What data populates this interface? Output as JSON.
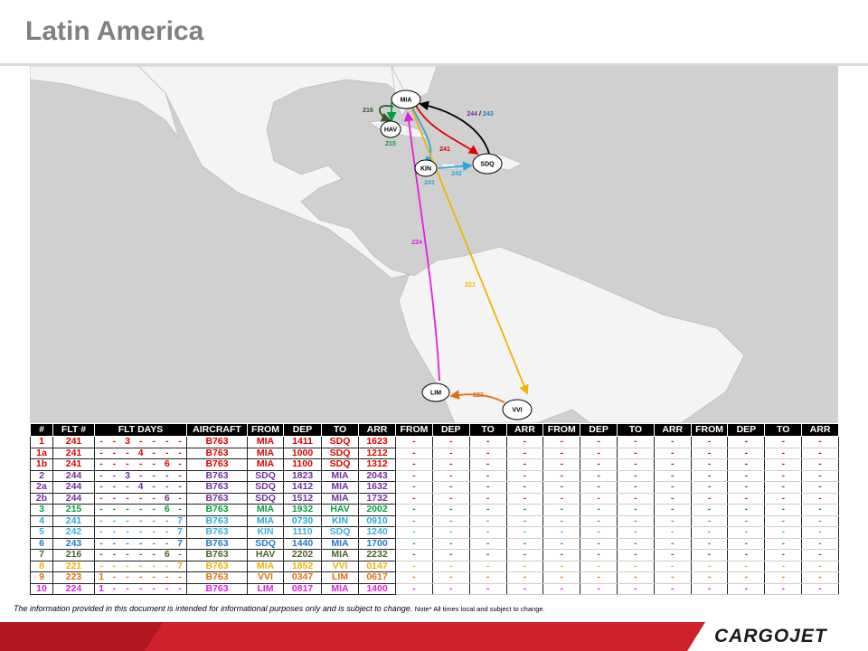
{
  "header": {
    "title": "Latin America"
  },
  "map": {
    "nodes": [
      {
        "label": "MIA"
      },
      {
        "label": "HAV"
      },
      {
        "label": "KIN"
      },
      {
        "label": "SDQ"
      },
      {
        "label": "LIM"
      },
      {
        "label": "VVI"
      }
    ],
    "routes": [
      {
        "label": "216",
        "color": "#375623"
      },
      {
        "label": "215",
        "color": "#00a040"
      },
      {
        "label": "244",
        "color": "#7030a0"
      },
      {
        "label": "/",
        "color": "#000000"
      },
      {
        "label": "243",
        "color": "#1f78c8"
      },
      {
        "label": "241",
        "color": "#e00000"
      },
      {
        "label": "241",
        "color": "#2aa8d8"
      },
      {
        "label": "242",
        "color": "#2aa8d8"
      },
      {
        "label": "224",
        "color": "#e020e0"
      },
      {
        "label": "221",
        "color": "#f0b400"
      },
      {
        "label": "223",
        "color": "#e46c0a"
      }
    ]
  },
  "table": {
    "header": [
      "#",
      "FLT #",
      "FLT DAYS",
      "AIRCRAFT",
      "FROM",
      "DEP",
      "TO",
      "ARR",
      "FROM",
      "DEP",
      "TO",
      "ARR",
      "FROM",
      "DEP",
      "TO",
      "ARR",
      "FROM",
      "DEP",
      "TO",
      "ARR"
    ],
    "rows": [
      {
        "color": "#e00000",
        "cells": [
          "1",
          "241",
          "-",
          "-",
          "3",
          "-",
          "-",
          "-",
          "-",
          "B763",
          "MIA",
          "1411",
          "SDQ",
          "1623",
          "-",
          "-",
          "-",
          "-",
          "-",
          "-",
          "-",
          "-",
          "-",
          "-",
          "-",
          "-"
        ]
      },
      {
        "color": "#e00000",
        "cells": [
          "1a",
          "241",
          "-",
          "-",
          "-",
          "4",
          "-",
          "-",
          "-",
          "B763",
          "MIA",
          "1000",
          "SDQ",
          "1212",
          "-",
          "-",
          "-",
          "-",
          "-",
          "-",
          "-",
          "-",
          "-",
          "-",
          "-",
          "-"
        ]
      },
      {
        "color": "#e00000",
        "cells": [
          "1b",
          "241",
          "-",
          "-",
          "-",
          "-",
          "-",
          "6",
          "-",
          "B763",
          "MIA",
          "1100",
          "SDQ",
          "1312",
          "-",
          "-",
          "-",
          "-",
          "-",
          "-",
          "-",
          "-",
          "-",
          "-",
          "-",
          "-"
        ]
      },
      {
        "color": "#7030a0",
        "cells": [
          "2",
          "244",
          "-",
          "-",
          "3",
          "-",
          "-",
          "-",
          "-",
          "B763",
          "SDQ",
          "1823",
          "MIA",
          "2043",
          "-",
          "-",
          "-",
          "-",
          "-",
          "-",
          "-",
          "-",
          "-",
          "-",
          "-",
          "-"
        ]
      },
      {
        "color": "#7030a0",
        "cells": [
          "2a",
          "244",
          "-",
          "-",
          "-",
          "4",
          "-",
          "-",
          "-",
          "B763",
          "SDQ",
          "1412",
          "MIA",
          "1632",
          "-",
          "-",
          "-",
          "-",
          "-",
          "-",
          "-",
          "-",
          "-",
          "-",
          "-",
          "-"
        ]
      },
      {
        "color": "#7030a0",
        "cells": [
          "2b",
          "244",
          "-",
          "-",
          "-",
          "-",
          "-",
          "6",
          "-",
          "B763",
          "SDQ",
          "1512",
          "MIA",
          "1732",
          "-",
          "-",
          "-",
          "-",
          "-",
          "-",
          "-",
          "-",
          "-",
          "-",
          "-",
          "-"
        ]
      },
      {
        "color": "#00a040",
        "cells": [
          "3",
          "215",
          "-",
          "-",
          "-",
          "-",
          "-",
          "6",
          "-",
          "B763",
          "MIA",
          "1932",
          "HAV",
          "2002",
          "-",
          "-",
          "-",
          "-",
          "-",
          "-",
          "-",
          "-",
          "-",
          "-",
          "-",
          "-"
        ]
      },
      {
        "color": "#2aa8d8",
        "cells": [
          "4",
          "241",
          "-",
          "-",
          "-",
          "-",
          "-",
          "-",
          "7",
          "B763",
          "MIA",
          "0730",
          "KIN",
          "0910",
          "-",
          "-",
          "-",
          "-",
          "-",
          "-",
          "-",
          "-",
          "-",
          "-",
          "-",
          "-"
        ]
      },
      {
        "color": "#40b0e0",
        "cells": [
          "5",
          "242",
          "-",
          "-",
          "-",
          "-",
          "-",
          "-",
          "7",
          "B763",
          "KIN",
          "1110",
          "SDQ",
          "1240",
          "-",
          "-",
          "-",
          "-",
          "-",
          "-",
          "-",
          "-",
          "-",
          "-",
          "-",
          "-"
        ]
      },
      {
        "color": "#1f78c8",
        "cells": [
          "6",
          "243",
          "-",
          "-",
          "-",
          "-",
          "-",
          "-",
          "7",
          "B763",
          "SDQ",
          "1440",
          "MIA",
          "1700",
          "-",
          "-",
          "-",
          "-",
          "-",
          "-",
          "-",
          "-",
          "-",
          "-",
          "-",
          "-"
        ]
      },
      {
        "color": "#4f6228",
        "cells": [
          "7",
          "216",
          "-",
          "-",
          "-",
          "-",
          "-",
          "6",
          "-",
          "B763",
          "HAV",
          "2202",
          "MIA",
          "2232",
          "-",
          "-",
          "-",
          "-",
          "-",
          "-",
          "-",
          "-",
          "-",
          "-",
          "-",
          "-"
        ]
      },
      {
        "color": "#f0b400",
        "cells": [
          "8",
          "221",
          "-",
          "-",
          "-",
          "-",
          "-",
          "-",
          "7",
          "B763",
          "MIA",
          "1852",
          "VVI",
          "0147",
          "-",
          "-",
          "-",
          "-",
          "-",
          "-",
          "-",
          "-",
          "-",
          "-",
          "-",
          "-"
        ]
      },
      {
        "color": "#e46c0a",
        "cells": [
          "9",
          "223",
          "1",
          "-",
          "-",
          "-",
          "-",
          "-",
          "-",
          "B763",
          "VVI",
          "0347",
          "LIM",
          "0617",
          "-",
          "-",
          "-",
          "-",
          "-",
          "-",
          "-",
          "-",
          "-",
          "-",
          "-",
          "-"
        ]
      },
      {
        "color": "#e020e0",
        "cells": [
          "10",
          "224",
          "1",
          "-",
          "-",
          "-",
          "-",
          "-",
          "-",
          "B763",
          "LIM",
          "0817",
          "MIA",
          "1400",
          "-",
          "-",
          "-",
          "-",
          "-",
          "-",
          "-",
          "-",
          "-",
          "-",
          "-",
          "-"
        ]
      }
    ]
  },
  "footer": {
    "disclaimer": "The information provided in this document is intended for informational purposes only and is subject to change.",
    "note": "Note* All times local and subject to change.",
    "logo": "CARGOJET"
  }
}
